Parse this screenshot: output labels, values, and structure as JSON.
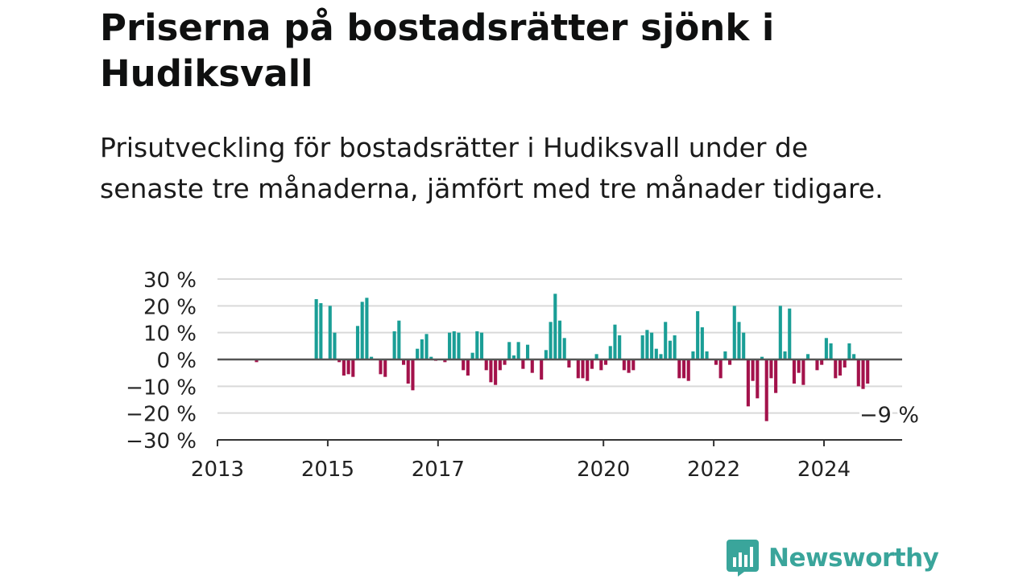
{
  "header": {
    "title": "Priserna på bostadsrätter sjönk i Hudiksvall",
    "subtitle": "Prisutveckling för bostadsrätter i Hudiksvall under de senaste tre månaderna, jämfört med tre månader tidigare."
  },
  "brand": {
    "name": "Newsworthy",
    "color": "#3aa59b",
    "icon": "bar-chart-icon"
  },
  "colors": {
    "positive": "#1a9e96",
    "negative": "#a3124b",
    "zero_line": "#555555",
    "grid": "#d9d9d9"
  },
  "chart_data": {
    "type": "bar",
    "title": "",
    "xlabel": "",
    "ylabel": "",
    "ylim": [
      -30,
      30
    ],
    "xlim": [
      "2013-01",
      "2025-06"
    ],
    "grid": true,
    "legend": "none",
    "yticks": [
      30,
      20,
      10,
      0,
      -10,
      -20,
      -30
    ],
    "ytick_labels": [
      "30 %",
      "20 %",
      "10 %",
      "0 %",
      "−10 %",
      "−20 %",
      "−30 %"
    ],
    "xticks": [
      "2013",
      "2015",
      "2017",
      "2020",
      "2022",
      "2024"
    ],
    "annotation": {
      "text": "−9 %",
      "month": "2025-02",
      "value": -9
    },
    "series": [
      {
        "values": [
          {
            "month": "2013-09",
            "value": -1
          },
          {
            "month": "2014-10",
            "value": 22.5
          },
          {
            "month": "2014-11",
            "value": 21
          },
          {
            "month": "2015-01",
            "value": 20
          },
          {
            "month": "2015-02",
            "value": 10
          },
          {
            "month": "2015-03",
            "value": -1
          },
          {
            "month": "2015-04",
            "value": -6
          },
          {
            "month": "2015-05",
            "value": -5.5
          },
          {
            "month": "2015-06",
            "value": -6.5
          },
          {
            "month": "2015-07",
            "value": 12.5
          },
          {
            "month": "2015-08",
            "value": 21.5
          },
          {
            "month": "2015-09",
            "value": 23
          },
          {
            "month": "2015-10",
            "value": 1
          },
          {
            "month": "2015-12",
            "value": -5.5
          },
          {
            "month": "2016-01",
            "value": -6.5
          },
          {
            "month": "2016-03",
            "value": 10.5
          },
          {
            "month": "2016-04",
            "value": 14.5
          },
          {
            "month": "2016-05",
            "value": -2
          },
          {
            "month": "2016-06",
            "value": -9
          },
          {
            "month": "2016-07",
            "value": -11.5
          },
          {
            "month": "2016-08",
            "value": 4
          },
          {
            "month": "2016-09",
            "value": 7.5
          },
          {
            "month": "2016-10",
            "value": 9.5
          },
          {
            "month": "2016-11",
            "value": 1
          },
          {
            "month": "2016-12",
            "value": -0.5
          },
          {
            "month": "2017-02",
            "value": -1
          },
          {
            "month": "2017-03",
            "value": 10
          },
          {
            "month": "2017-04",
            "value": 10.5
          },
          {
            "month": "2017-05",
            "value": 10
          },
          {
            "month": "2017-06",
            "value": -4
          },
          {
            "month": "2017-07",
            "value": -6
          },
          {
            "month": "2017-08",
            "value": 2.5
          },
          {
            "month": "2017-09",
            "value": 10.5
          },
          {
            "month": "2017-10",
            "value": 10
          },
          {
            "month": "2017-11",
            "value": -4
          },
          {
            "month": "2017-12",
            "value": -8.5
          },
          {
            "month": "2018-01",
            "value": -9.5
          },
          {
            "month": "2018-02",
            "value": -4
          },
          {
            "month": "2018-03",
            "value": -2
          },
          {
            "month": "2018-04",
            "value": 6.5
          },
          {
            "month": "2018-05",
            "value": 1.5
          },
          {
            "month": "2018-06",
            "value": 6.5
          },
          {
            "month": "2018-07",
            "value": -3.5
          },
          {
            "month": "2018-08",
            "value": 5.5
          },
          {
            "month": "2018-09",
            "value": -5
          },
          {
            "month": "2018-11",
            "value": -7.5
          },
          {
            "month": "2018-12",
            "value": 3.5
          },
          {
            "month": "2019-01",
            "value": 14
          },
          {
            "month": "2019-02",
            "value": 24.5
          },
          {
            "month": "2019-03",
            "value": 14.5
          },
          {
            "month": "2019-04",
            "value": 8
          },
          {
            "month": "2019-05",
            "value": -3
          },
          {
            "month": "2019-07",
            "value": -7
          },
          {
            "month": "2019-08",
            "value": -7
          },
          {
            "month": "2019-09",
            "value": -8
          },
          {
            "month": "2019-10",
            "value": -3.5
          },
          {
            "month": "2019-11",
            "value": 2
          },
          {
            "month": "2019-12",
            "value": -4
          },
          {
            "month": "2020-01",
            "value": -2
          },
          {
            "month": "2020-02",
            "value": 5
          },
          {
            "month": "2020-03",
            "value": 13
          },
          {
            "month": "2020-04",
            "value": 9
          },
          {
            "month": "2020-05",
            "value": -4
          },
          {
            "month": "2020-06",
            "value": -5
          },
          {
            "month": "2020-07",
            "value": -4
          },
          {
            "month": "2020-09",
            "value": 9
          },
          {
            "month": "2020-10",
            "value": 11
          },
          {
            "month": "2020-11",
            "value": 10
          },
          {
            "month": "2020-12",
            "value": 4
          },
          {
            "month": "2021-01",
            "value": 2
          },
          {
            "month": "2021-02",
            "value": 14
          },
          {
            "month": "2021-03",
            "value": 7
          },
          {
            "month": "2021-04",
            "value": 9
          },
          {
            "month": "2021-05",
            "value": -7
          },
          {
            "month": "2021-06",
            "value": -7
          },
          {
            "month": "2021-07",
            "value": -8
          },
          {
            "month": "2021-08",
            "value": 3
          },
          {
            "month": "2021-09",
            "value": 18
          },
          {
            "month": "2021-10",
            "value": 12
          },
          {
            "month": "2021-11",
            "value": 3
          },
          {
            "month": "2022-01",
            "value": -2
          },
          {
            "month": "2022-02",
            "value": -7
          },
          {
            "month": "2022-03",
            "value": 3
          },
          {
            "month": "2022-04",
            "value": -2
          },
          {
            "month": "2022-05",
            "value": 20
          },
          {
            "month": "2022-06",
            "value": 14
          },
          {
            "month": "2022-07",
            "value": 10
          },
          {
            "month": "2022-08",
            "value": -17.5
          },
          {
            "month": "2022-09",
            "value": -8
          },
          {
            "month": "2022-10",
            "value": -14.5
          },
          {
            "month": "2022-11",
            "value": 1
          },
          {
            "month": "2022-12",
            "value": -23
          },
          {
            "month": "2023-01",
            "value": -7
          },
          {
            "month": "2023-02",
            "value": -12.5
          },
          {
            "month": "2023-03",
            "value": 20
          },
          {
            "month": "2023-04",
            "value": 3
          },
          {
            "month": "2023-05",
            "value": 19
          },
          {
            "month": "2023-06",
            "value": -9
          },
          {
            "month": "2023-07",
            "value": -5
          },
          {
            "month": "2023-08",
            "value": -9.5
          },
          {
            "month": "2023-09",
            "value": 2
          },
          {
            "month": "2023-11",
            "value": -4
          },
          {
            "month": "2023-12",
            "value": -2
          },
          {
            "month": "2024-01",
            "value": 8
          },
          {
            "month": "2024-02",
            "value": 6
          },
          {
            "month": "2024-03",
            "value": -7
          },
          {
            "month": "2024-04",
            "value": -6
          },
          {
            "month": "2024-05",
            "value": -3
          },
          {
            "month": "2024-06",
            "value": 6
          },
          {
            "month": "2024-07",
            "value": 2
          },
          {
            "month": "2024-08",
            "value": -10
          },
          {
            "month": "2024-09",
            "value": -11
          },
          {
            "month": "2024-10",
            "value": -9
          }
        ]
      }
    ]
  }
}
